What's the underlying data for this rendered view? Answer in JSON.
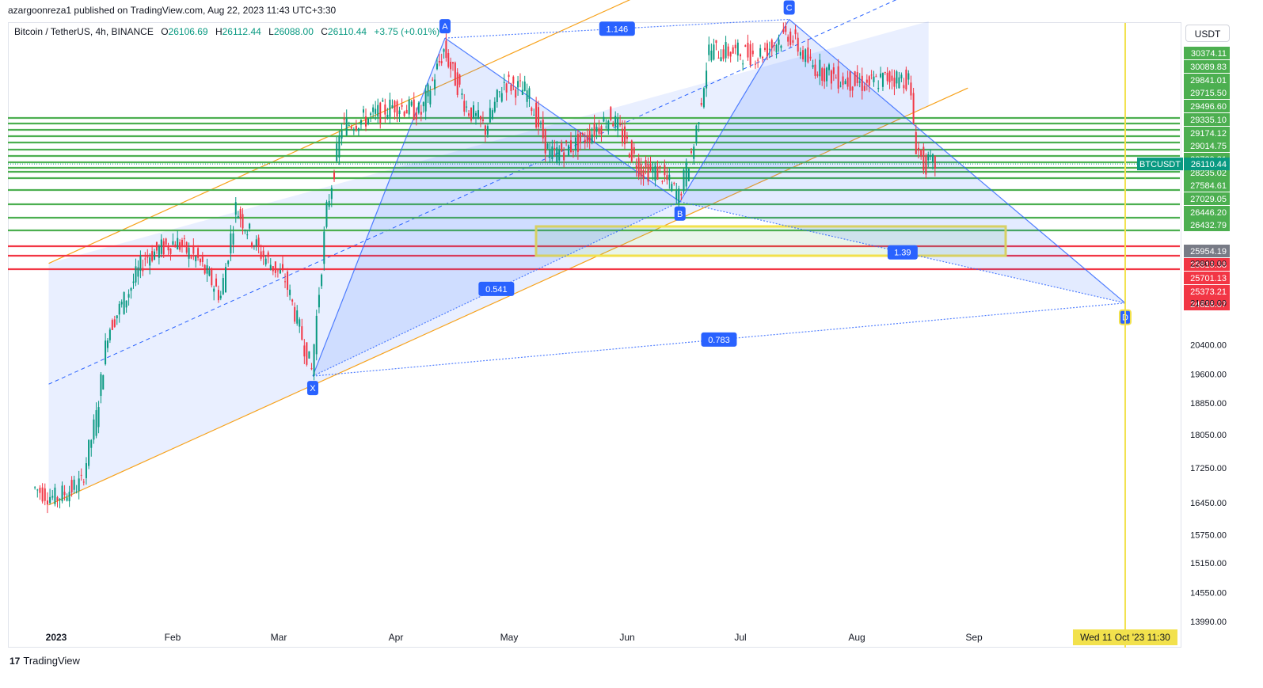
{
  "header": {
    "published": "azargoonreza1 published on TradingView.com, Aug 22, 2023 11:43 UTC+3:30"
  },
  "legend": {
    "symbol": "Bitcoin / TetherUS, 4h, BINANCE",
    "o_label": "O",
    "o": "26106.69",
    "h_label": "H",
    "h": "26112.44",
    "l_label": "L",
    "l": "26088.00",
    "c_label": "C",
    "c": "26110.44",
    "change": "+3.75 (+0.01%)"
  },
  "currency": "USDT",
  "footer": {
    "brand": "TradingView"
  },
  "colors": {
    "bull": "#089981",
    "bear": "#f23645",
    "support": "#f23645",
    "resistance": "#4caf50",
    "channel": "#f7a21b",
    "pattern": "#2962ff",
    "zone": "#f2e14c",
    "target": "#f2e14c"
  },
  "chart_data": {
    "type": "candlestick",
    "symbol": "BTCUSDT",
    "y_scale": "log",
    "x_ticks": [
      "2023",
      "Feb",
      "Mar",
      "Apr",
      "May",
      "Jun",
      "Jul",
      "Aug",
      "Sep"
    ],
    "x_tick_dates": [
      "2023-01-01",
      "2023-02-01",
      "2023-03-01",
      "2023-04-01",
      "2023-05-01",
      "2023-06-01",
      "2023-07-01",
      "2023-08-01",
      "2023-09-01"
    ],
    "y_ticks": [
      "22800.00",
      "21600.00",
      "20400.00",
      "19600.00",
      "18850.00",
      "18050.00",
      "17250.00",
      "16450.00",
      "15750.00",
      "15150.00",
      "14550.00",
      "13990.00"
    ],
    "last_price": {
      "label": "BTCUSDT",
      "value": "26110.44"
    },
    "green_levels": [
      "30374.11",
      "30089.83",
      "29841.01",
      "29715.50",
      "29496.60",
      "29335.10",
      "29174.12",
      "29014.75",
      "28789.31",
      "28235.02",
      "27584.61",
      "27029.05",
      "26446.20",
      "26432.79"
    ],
    "grey_level": "25954.19",
    "red_levels": [
      "25819.58",
      "25701.13",
      "25373.21",
      "24826.07"
    ],
    "pattern": {
      "points": [
        {
          "label": "X",
          "date": "2023-03-10",
          "price": 19550
        },
        {
          "label": "A",
          "date": "2023-04-14",
          "price": 31000
        },
        {
          "label": "B",
          "date": "2023-06-15",
          "price": 24800
        },
        {
          "label": "C",
          "date": "2023-07-14",
          "price": 31800
        },
        {
          "label": "D",
          "date": "2023-10-11",
          "price": 21600
        }
      ],
      "ratios": [
        {
          "label": "0.541",
          "between": "X-A-B"
        },
        {
          "label": "1.146",
          "between": "A-B-C"
        },
        {
          "label": "1.39",
          "between": "B-C-D"
        },
        {
          "label": "0.783",
          "between": "X-A-D"
        }
      ]
    },
    "time_marker": "Wed 11 Oct '23   11:30",
    "series": [
      {
        "date": "2022-12-26",
        "close": 16800
      },
      {
        "date": "2023-01-01",
        "close": 16550
      },
      {
        "date": "2023-01-08",
        "close": 16900
      },
      {
        "date": "2023-01-12",
        "close": 18500
      },
      {
        "date": "2023-01-15",
        "close": 20800
      },
      {
        "date": "2023-01-20",
        "close": 21800
      },
      {
        "date": "2023-01-25",
        "close": 23000
      },
      {
        "date": "2023-02-02",
        "close": 23500
      },
      {
        "date": "2023-02-08",
        "close": 22900
      },
      {
        "date": "2023-02-14",
        "close": 21800
      },
      {
        "date": "2023-02-18",
        "close": 24600
      },
      {
        "date": "2023-02-24",
        "close": 23200
      },
      {
        "date": "2023-03-03",
        "close": 22300
      },
      {
        "date": "2023-03-10",
        "close": 19700
      },
      {
        "date": "2023-03-14",
        "close": 24500
      },
      {
        "date": "2023-03-18",
        "close": 27500
      },
      {
        "date": "2023-03-25",
        "close": 27800
      },
      {
        "date": "2023-04-01",
        "close": 28300
      },
      {
        "date": "2023-04-08",
        "close": 28000
      },
      {
        "date": "2023-04-14",
        "close": 30500
      },
      {
        "date": "2023-04-20",
        "close": 28200
      },
      {
        "date": "2023-04-25",
        "close": 27400
      },
      {
        "date": "2023-04-30",
        "close": 29200
      },
      {
        "date": "2023-05-06",
        "close": 28800
      },
      {
        "date": "2023-05-12",
        "close": 26400
      },
      {
        "date": "2023-05-20",
        "close": 26900
      },
      {
        "date": "2023-05-28",
        "close": 27900
      },
      {
        "date": "2023-06-05",
        "close": 25900
      },
      {
        "date": "2023-06-10",
        "close": 25800
      },
      {
        "date": "2023-06-15",
        "close": 25000
      },
      {
        "date": "2023-06-19",
        "close": 26800
      },
      {
        "date": "2023-06-23",
        "close": 30500
      },
      {
        "date": "2023-06-30",
        "close": 30400
      },
      {
        "date": "2023-07-06",
        "close": 30300
      },
      {
        "date": "2023-07-14",
        "close": 31200
      },
      {
        "date": "2023-07-20",
        "close": 29900
      },
      {
        "date": "2023-07-28",
        "close": 29300
      },
      {
        "date": "2023-08-04",
        "close": 29100
      },
      {
        "date": "2023-08-10",
        "close": 29400
      },
      {
        "date": "2023-08-15",
        "close": 29300
      },
      {
        "date": "2023-08-17",
        "close": 26800
      },
      {
        "date": "2023-08-19",
        "close": 26100
      },
      {
        "date": "2023-08-22",
        "close": 26110
      }
    ]
  }
}
